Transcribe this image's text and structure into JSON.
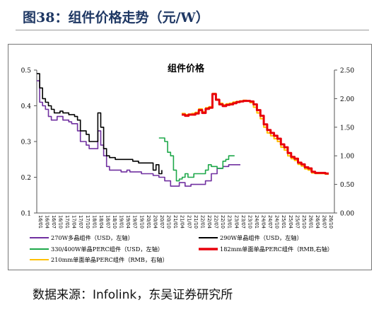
{
  "figure": {
    "title": "图38：组件价格走势（元/W）",
    "source": "数据来源：Infolink，东吴证券研究所"
  },
  "chart_data": {
    "type": "line",
    "title": "组件价格",
    "left_axis": {
      "range": [
        0.1,
        0.5
      ],
      "ticks": [
        "0.1",
        "0.2",
        "0.3",
        "0.4",
        "0.5"
      ]
    },
    "right_axis": {
      "range": [
        0.0,
        2.5
      ],
      "ticks": [
        "0.00",
        "0.50",
        "1.00",
        "1.50",
        "2.00",
        "2.50"
      ]
    },
    "x_ticks": [
      "16/01",
      "16/04",
      "16/07",
      "16/10",
      "17/01",
      "17/04",
      "17/07",
      "17/10",
      "18/01",
      "18/04",
      "18/07",
      "18/10",
      "19/01",
      "19/04",
      "19/07",
      "19/10",
      "20/01",
      "20/04",
      "20/07",
      "20/10",
      "21/01",
      "21/04",
      "21/07",
      "21/10",
      "22/01",
      "22/04",
      "22/07",
      "22/10",
      "23/01",
      "23/04",
      "23/07",
      "23/10",
      "24/01",
      "24/04",
      "24/07",
      "24/10",
      "25/01",
      "25/04",
      "25/07",
      "25/10",
      "26/01",
      "26/04",
      "26/07",
      "26/10"
    ],
    "grid": false,
    "legend_position": "bottom",
    "series": [
      {
        "name": "270W多晶组件（USD，左轴）",
        "axis": "left",
        "color": "#7030a0",
        "points": [
          [
            0,
            0.47
          ],
          [
            1,
            0.41
          ],
          [
            2,
            0.4
          ],
          [
            3,
            0.39
          ],
          [
            4,
            0.37
          ],
          [
            5,
            0.36
          ],
          [
            6,
            0.36
          ],
          [
            7,
            0.37
          ],
          [
            8,
            0.37
          ],
          [
            9,
            0.36
          ],
          [
            10,
            0.36
          ],
          [
            11,
            0.355
          ],
          [
            12,
            0.35
          ],
          [
            13,
            0.35
          ],
          [
            14,
            0.33
          ],
          [
            15,
            0.3
          ],
          [
            16,
            0.3
          ],
          [
            17,
            0.29
          ],
          [
            18,
            0.28
          ],
          [
            19,
            0.28
          ],
          [
            20,
            0.28
          ],
          [
            21,
            0.33
          ],
          [
            22,
            0.29
          ],
          [
            23,
            0.26
          ],
          [
            24,
            0.23
          ],
          [
            25,
            0.22
          ],
          [
            27,
            0.22
          ],
          [
            29,
            0.215
          ],
          [
            31,
            0.22
          ],
          [
            32,
            0.215
          ],
          [
            34,
            0.215
          ],
          [
            36,
            0.21
          ],
          [
            38,
            0.21
          ],
          [
            40,
            0.205
          ],
          [
            42,
            0.2
          ],
          [
            44,
            0.19
          ],
          [
            45,
            0.19
          ],
          [
            46,
            0.175
          ],
          [
            48,
            0.175
          ],
          [
            49,
            0.185
          ],
          [
            50,
            0.185
          ],
          [
            51,
            0.175
          ],
          [
            53,
            0.18
          ],
          [
            55,
            0.18
          ],
          [
            57,
            0.18
          ],
          [
            58,
            0.19
          ],
          [
            60,
            0.21
          ],
          [
            62,
            0.225
          ],
          [
            64,
            0.23
          ],
          [
            66,
            0.235
          ],
          [
            68,
            0.235
          ],
          [
            70,
            0.235
          ]
        ]
      },
      {
        "name": "290W单晶组件（USD，左轴）",
        "axis": "left",
        "color": "#000000",
        "points": [
          [
            0,
            0.49
          ],
          [
            1,
            0.45
          ],
          [
            2,
            0.42
          ],
          [
            3,
            0.41
          ],
          [
            4,
            0.4
          ],
          [
            5,
            0.39
          ],
          [
            6,
            0.38
          ],
          [
            7,
            0.38
          ],
          [
            8,
            0.385
          ],
          [
            9,
            0.38
          ],
          [
            10,
            0.38
          ],
          [
            11,
            0.375
          ],
          [
            12,
            0.375
          ],
          [
            13,
            0.37
          ],
          [
            14,
            0.36
          ],
          [
            15,
            0.33
          ],
          [
            16,
            0.33
          ],
          [
            17,
            0.32
          ],
          [
            18,
            0.3
          ],
          [
            19,
            0.3
          ],
          [
            20,
            0.3
          ],
          [
            21,
            0.38
          ],
          [
            22,
            0.34
          ],
          [
            23,
            0.28
          ],
          [
            24,
            0.26
          ],
          [
            25,
            0.255
          ],
          [
            27,
            0.25
          ],
          [
            29,
            0.25
          ],
          [
            31,
            0.25
          ],
          [
            32,
            0.25
          ],
          [
            33,
            0.245
          ],
          [
            35,
            0.24
          ],
          [
            37,
            0.24
          ],
          [
            39,
            0.24
          ],
          [
            40,
            0.22
          ],
          [
            41,
            0.235
          ],
          [
            42,
            0.21
          ],
          [
            43,
            0.22
          ]
        ]
      },
      {
        "name": "330/400W单晶PERC组件（USD，左轴）",
        "axis": "left",
        "color": "#1ea84a",
        "points": [
          [
            42,
            0.31
          ],
          [
            43,
            0.31
          ],
          [
            44,
            0.3
          ],
          [
            45,
            0.27
          ],
          [
            46,
            0.26
          ],
          [
            47,
            0.22
          ],
          [
            48,
            0.19
          ],
          [
            49,
            0.195
          ],
          [
            50,
            0.2
          ],
          [
            51,
            0.21
          ],
          [
            52,
            0.2
          ],
          [
            54,
            0.21
          ],
          [
            56,
            0.21
          ],
          [
            58,
            0.22
          ],
          [
            59,
            0.235
          ],
          [
            60,
            0.23
          ],
          [
            62,
            0.225
          ],
          [
            64,
            0.245
          ],
          [
            65,
            0.25
          ],
          [
            66,
            0.26
          ],
          [
            68,
            0.26
          ]
        ]
      },
      {
        "name": "182mm单面单晶PERC组件（RMB,右轴）",
        "axis": "right",
        "color": "#e8000b",
        "points": [
          [
            0,
            1.72
          ],
          [
            1,
            1.7
          ],
          [
            2,
            1.72
          ],
          [
            3,
            1.72
          ],
          [
            4,
            1.74
          ],
          [
            5,
            1.8
          ],
          [
            6,
            1.75
          ],
          [
            7,
            1.82
          ],
          [
            8,
            1.84
          ],
          [
            9,
            2.08
          ],
          [
            10,
            1.98
          ],
          [
            11,
            1.9
          ],
          [
            12,
            1.87
          ],
          [
            13,
            1.89
          ],
          [
            14,
            1.9
          ],
          [
            15,
            1.92
          ],
          [
            16,
            1.94
          ],
          [
            17,
            1.95
          ],
          [
            18,
            1.96
          ],
          [
            19,
            1.96
          ],
          [
            20,
            1.95
          ],
          [
            21,
            1.9
          ],
          [
            22,
            1.8
          ],
          [
            23,
            1.7
          ],
          [
            24,
            1.55
          ],
          [
            25,
            1.45
          ],
          [
            26,
            1.4
          ],
          [
            27,
            1.35
          ],
          [
            28,
            1.3
          ],
          [
            29,
            1.2
          ],
          [
            30,
            1.15
          ],
          [
            31,
            1.05
          ],
          [
            32,
            0.98
          ],
          [
            33,
            0.95
          ],
          [
            34,
            0.88
          ],
          [
            35,
            0.85
          ],
          [
            36,
            0.8
          ],
          [
            37,
            0.78
          ],
          [
            38,
            0.72
          ],
          [
            39,
            0.7
          ],
          [
            40,
            0.7
          ],
          [
            41,
            0.7
          ],
          [
            42,
            0.69
          ],
          [
            43,
            0.69
          ]
        ]
      },
      {
        "name": "210mm单面单晶PERC组件（RMB，右轴）",
        "axis": "right",
        "color": "#ffc000",
        "points": [
          [
            0,
            1.74
          ],
          [
            1,
            1.72
          ],
          [
            2,
            1.73
          ],
          [
            3,
            1.74
          ],
          [
            4,
            1.76
          ],
          [
            5,
            1.82
          ],
          [
            6,
            1.77
          ],
          [
            7,
            1.84
          ],
          [
            8,
            1.86
          ],
          [
            9,
            2.09
          ],
          [
            10,
            1.99
          ],
          [
            11,
            1.92
          ],
          [
            12,
            1.89
          ],
          [
            13,
            1.91
          ],
          [
            14,
            1.92
          ],
          [
            15,
            1.94
          ],
          [
            16,
            1.95
          ],
          [
            17,
            1.96
          ],
          [
            18,
            1.97
          ],
          [
            19,
            1.96
          ],
          [
            20,
            1.93
          ],
          [
            21,
            1.85
          ],
          [
            22,
            1.75
          ],
          [
            23,
            1.65
          ],
          [
            24,
            1.5
          ],
          [
            25,
            1.4
          ],
          [
            26,
            1.35
          ],
          [
            27,
            1.3
          ],
          [
            28,
            1.25
          ],
          [
            29,
            1.15
          ],
          [
            30,
            1.1
          ],
          [
            31,
            1.0
          ],
          [
            32,
            0.95
          ],
          [
            33,
            0.92
          ],
          [
            34,
            0.85
          ],
          [
            35,
            0.82
          ],
          [
            36,
            0.77
          ],
          [
            37,
            0.75
          ],
          [
            38,
            0.7
          ],
          [
            39,
            0.69
          ],
          [
            40,
            0.69
          ],
          [
            41,
            0.69
          ],
          [
            42,
            0.68
          ],
          [
            43,
            0.68
          ]
        ]
      }
    ]
  }
}
